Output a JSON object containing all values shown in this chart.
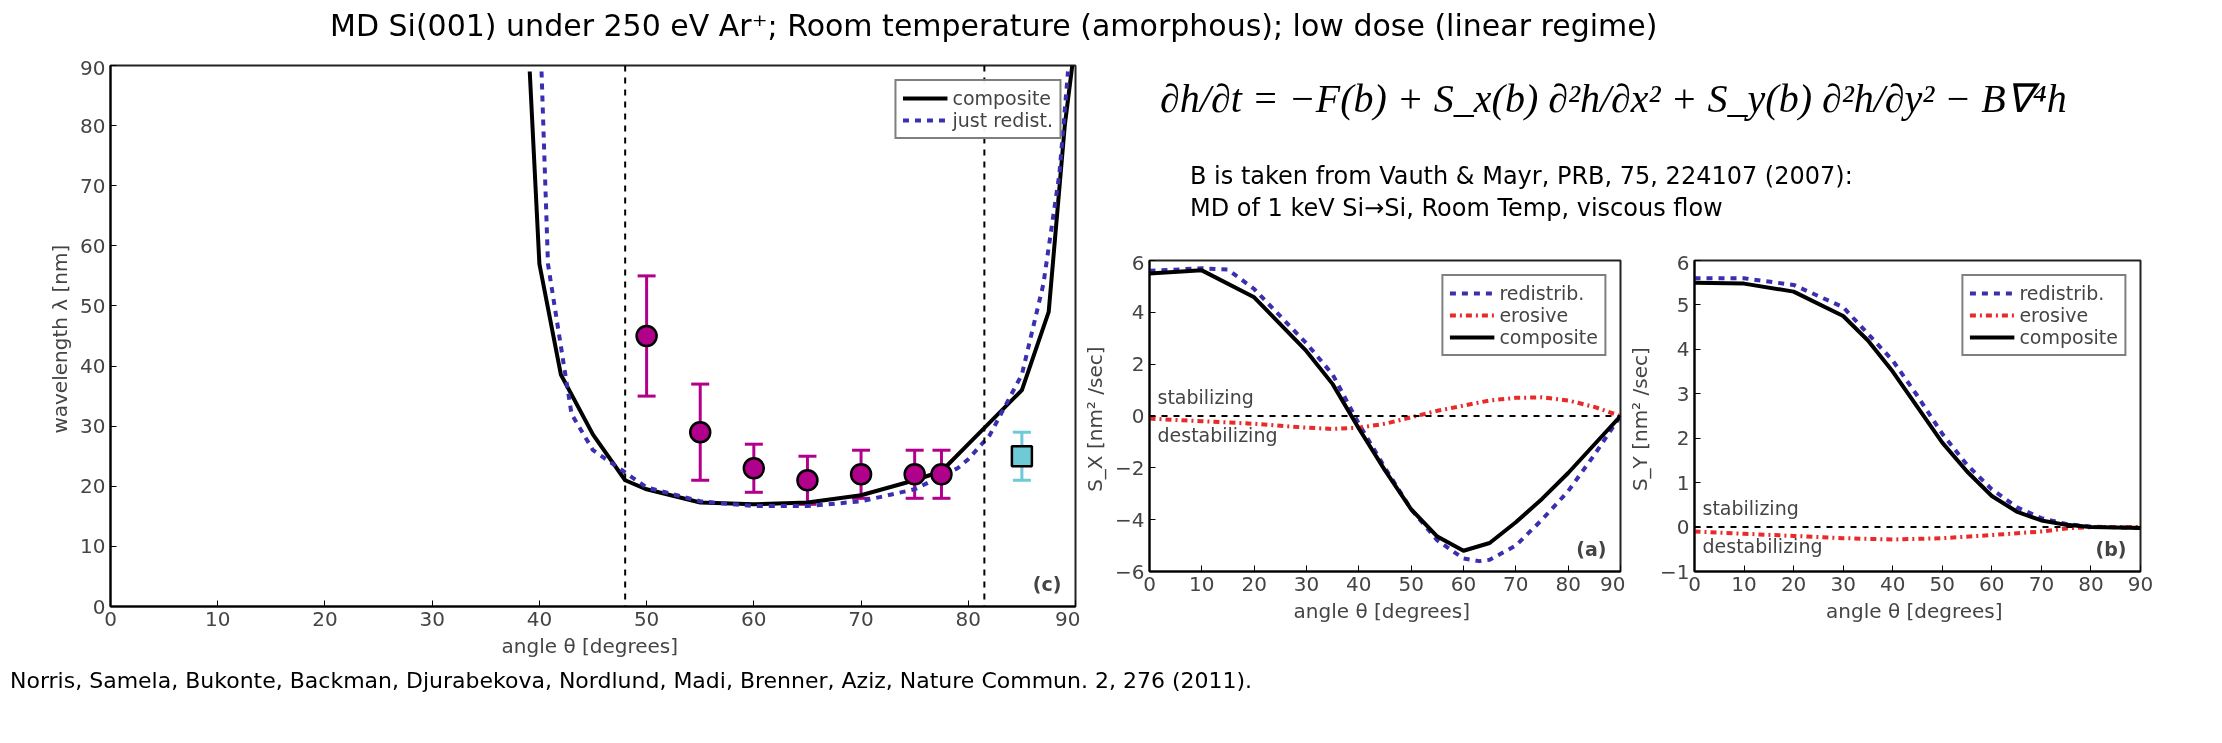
{
  "chart_data": [
    {
      "type": "line",
      "xlabel": "angle θ  [degrees]",
      "ylabel": "wavelength λ  [nm]",
      "xlim": [
        0,
        90
      ],
      "ylim": [
        0,
        90
      ],
      "xticks": [
        0,
        10,
        20,
        30,
        40,
        50,
        60,
        70,
        80,
        90
      ],
      "yticks": [
        0,
        10,
        20,
        30,
        40,
        50,
        60,
        70,
        80,
        90
      ],
      "grid": false,
      "legend": "top right",
      "series": [
        {
          "name": "composite",
          "color": "#000000",
          "line_style": "solid",
          "x": [
            39.1,
            40,
            42,
            45,
            48,
            50,
            55,
            60,
            65,
            70,
            75,
            77.5,
            80,
            85,
            87.5,
            89,
            89.7
          ],
          "values": [
            89,
            57,
            38.6,
            28.6,
            21,
            19.5,
            17.3,
            17,
            17.3,
            18.5,
            21,
            22.5,
            27,
            36,
            49,
            80,
            90
          ]
        },
        {
          "name": "just redist.",
          "color": "#3a2fb0",
          "line_style": "dashed",
          "x": [
            40.2,
            40.8,
            43,
            45,
            48,
            50,
            55,
            60,
            65,
            70,
            75,
            79,
            80,
            82,
            85,
            87,
            88.5,
            89.3
          ],
          "values": [
            89,
            57,
            32,
            26,
            22.3,
            19.8,
            17.5,
            16.7,
            16.7,
            17.5,
            19.5,
            23,
            24.5,
            28.5,
            38.6,
            53.6,
            72,
            89
          ]
        },
        {
          "type": "scatter",
          "marker": "circle",
          "color": "#b0008c",
          "x": [
            50,
            55,
            60,
            65,
            70,
            75,
            77.5
          ],
          "values": [
            45,
            29,
            23,
            21,
            22,
            22,
            22
          ],
          "errors": [
            10,
            8,
            4,
            4,
            4,
            4,
            4
          ]
        },
        {
          "type": "scatter",
          "marker": "square",
          "color": "#6fcad8",
          "x": [
            85
          ],
          "values": [
            25
          ],
          "errors": [
            4
          ]
        }
      ],
      "ref_lines": [
        {
          "axis": "x",
          "value": 48,
          "color": "#000000",
          "line_style": "dashed"
        },
        {
          "axis": "x",
          "value": 81.5,
          "color": "#000000",
          "line_style": "dashed"
        }
      ],
      "annotations": [
        "(c)"
      ]
    },
    {
      "type": "line",
      "xlabel": "angle θ  [degrees]",
      "ylabel": "S_X  [nm² /sec]",
      "xlim": [
        0,
        90
      ],
      "ylim": [
        -6,
        6
      ],
      "xticks": [
        0,
        10,
        20,
        30,
        40,
        50,
        60,
        70,
        80,
        90
      ],
      "yticks": [
        -6,
        -4,
        -2,
        0,
        2,
        4,
        6
      ],
      "grid": false,
      "legend": "top right",
      "series": [
        {
          "name": "redistrib.",
          "color": "#3a2fb0",
          "line_style": "dashed",
          "x": [
            0,
            10,
            15,
            20,
            30,
            35,
            40,
            45,
            50,
            55,
            60,
            63,
            65,
            70,
            75,
            80,
            85,
            90
          ],
          "values": [
            5.6,
            5.7,
            5.65,
            4.9,
            2.8,
            1.6,
            -0.3,
            -2.0,
            -3.6,
            -4.8,
            -5.5,
            -5.6,
            -5.55,
            -5.0,
            -4.0,
            -2.9,
            -1.5,
            0
          ]
        },
        {
          "name": "erosive",
          "color": "#e82a2a",
          "line_style": "dashdot",
          "x": [
            0,
            10,
            20,
            30,
            35,
            40,
            45,
            50,
            55,
            60,
            65,
            70,
            75,
            80,
            85,
            90
          ],
          "values": [
            -0.1,
            -0.2,
            -0.3,
            -0.45,
            -0.5,
            -0.45,
            -0.3,
            -0.05,
            0.2,
            0.4,
            0.6,
            0.7,
            0.72,
            0.6,
            0.35,
            0
          ]
        },
        {
          "name": "composite",
          "color": "#000000",
          "line_style": "solid",
          "x": [
            0,
            10,
            20,
            30,
            35,
            40,
            45,
            50,
            55,
            60,
            65,
            70,
            75,
            80,
            85,
            90
          ],
          "values": [
            5.5,
            5.62,
            4.58,
            2.5,
            1.23,
            -0.48,
            -2.1,
            -3.6,
            -4.65,
            -5.2,
            -4.9,
            -4.1,
            -3.2,
            -2.2,
            -1.1,
            0
          ]
        }
      ],
      "ref_lines": [
        {
          "axis": "y",
          "value": 0,
          "color": "#000000",
          "line_style": "dashed"
        }
      ],
      "annotations": [
        "stabilizing",
        "destabilizing",
        "(a)"
      ]
    },
    {
      "type": "line",
      "xlabel": "angle θ  [degrees]",
      "ylabel": "S_Y  [nm² /sec]",
      "xlim": [
        0,
        90
      ],
      "ylim": [
        -1,
        6
      ],
      "xticks": [
        0,
        10,
        20,
        30,
        40,
        50,
        60,
        70,
        80,
        90
      ],
      "yticks": [
        -1,
        0,
        1,
        2,
        3,
        4,
        5,
        6
      ],
      "grid": false,
      "legend": "top right",
      "series": [
        {
          "name": "redistrib.",
          "color": "#3a2fb0",
          "line_style": "dashed",
          "x": [
            0,
            10,
            20,
            30,
            40,
            45,
            50,
            55,
            60,
            65,
            70,
            75,
            80,
            90
          ],
          "values": [
            5.6,
            5.6,
            5.45,
            4.95,
            3.75,
            2.95,
            2.1,
            1.4,
            0.85,
            0.45,
            0.2,
            0.07,
            0.01,
            -0.02
          ]
        },
        {
          "name": "erosive",
          "color": "#e82a2a",
          "line_style": "dashdot",
          "x": [
            0,
            10,
            20,
            30,
            40,
            50,
            60,
            70,
            75,
            80,
            90
          ],
          "values": [
            -0.1,
            -0.15,
            -0.2,
            -0.25,
            -0.28,
            -0.25,
            -0.18,
            -0.1,
            -0.03,
            0,
            0
          ]
        },
        {
          "name": "composite",
          "color": "#000000",
          "line_style": "solid",
          "x": [
            0,
            10,
            20,
            30,
            35,
            40,
            45,
            50,
            55,
            60,
            65,
            70,
            75,
            80,
            90
          ],
          "values": [
            5.5,
            5.48,
            5.3,
            4.75,
            4.2,
            3.5,
            2.7,
            1.9,
            1.25,
            0.7,
            0.35,
            0.15,
            0.05,
            0,
            -0.02
          ]
        }
      ],
      "ref_lines": [
        {
          "axis": "y",
          "value": 0,
          "color": "#000000",
          "line_style": "dashed"
        }
      ],
      "annotations": [
        "stabilizing",
        "destabilizing",
        "(b)"
      ]
    },
    {
      "type": "other",
      "title": "MD Si(001) under 250 eV Ar⁺; Room temperature (amorphous); low dose (linear regime)",
      "annotations": [
        "∂h/∂t = −F(b) + S_x(b) ∂²h/∂x² + S_y(b) ∂²h/∂y² − B∇⁴h",
        "B is taken from Vauth & Mayr, PRB, 75, 224107 (2007):",
        "MD of 1 keV Si→Si, Room Temp, viscous flow",
        "Norris, Samela, Bukonte, Backman, Djurabekova, Nordlund, Madi, Brenner, Aziz, Nature Commun. 2, 276 (2011)."
      ]
    }
  ]
}
